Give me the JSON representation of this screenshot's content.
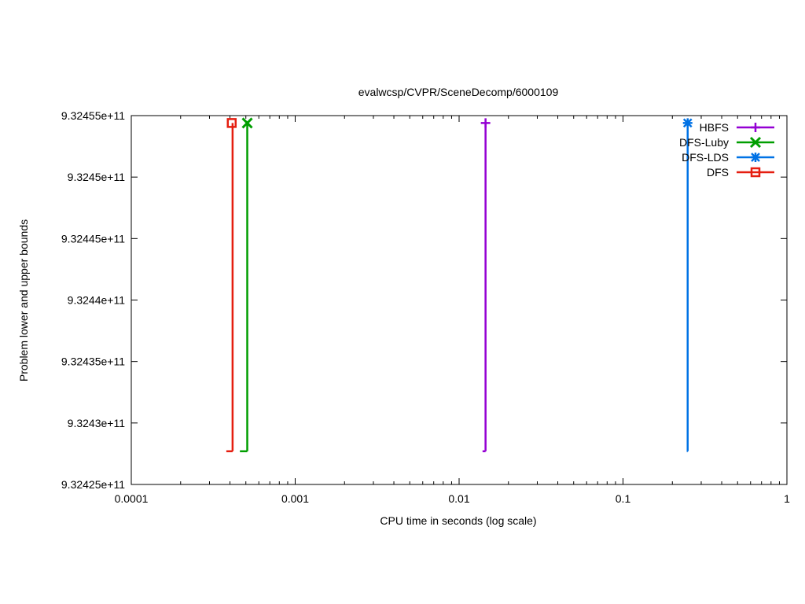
{
  "chart_data": {
    "type": "line",
    "title": "evalwcsp/CVPR/SceneDecomp/6000109",
    "xlabel": "CPU time in seconds (log scale)",
    "ylabel": "Problem lower and upper bounds",
    "x_scale": "log",
    "xlim": [
      0.0001,
      1
    ],
    "ylim": [
      932425000000,
      932455000000
    ],
    "x_ticks": [
      {
        "value": 0.0001,
        "label": "0.0001"
      },
      {
        "value": 0.001,
        "label": "0.001"
      },
      {
        "value": 0.01,
        "label": "0.01"
      },
      {
        "value": 0.1,
        "label": "0.1"
      },
      {
        "value": 1,
        "label": "1"
      }
    ],
    "y_ticks": [
      {
        "value": 932425000000,
        "label": "9.32425e+11"
      },
      {
        "value": 932430000000,
        "label": "9.3243e+11"
      },
      {
        "value": 932435000000,
        "label": "9.32435e+11"
      },
      {
        "value": 932440000000,
        "label": "9.3244e+11"
      },
      {
        "value": 932445000000,
        "label": "9.32445e+11"
      },
      {
        "value": 932450000000,
        "label": "9.3245e+11"
      },
      {
        "value": 932455000000,
        "label": "9.32455e+11"
      }
    ],
    "legend_position": "top-right",
    "grid": false,
    "series": [
      {
        "name": "HBFS",
        "color": "#9400d3",
        "marker": "plus",
        "lower_bound": {
          "x": [
            0.0139,
            0.0145
          ],
          "y": [
            932427700000,
            932427700000
          ]
        },
        "step": {
          "x": [
            0.0145,
            0.0145
          ],
          "y": [
            932427700000,
            932454400000
          ]
        },
        "upper_bound": {
          "x": [
            0.0145
          ],
          "y": [
            932454400000
          ]
        }
      },
      {
        "name": "DFS-Luby",
        "color": "#009e00",
        "marker": "x",
        "lower_bound": {
          "x": [
            0.00046,
            0.00051
          ],
          "y": [
            932427700000,
            932427700000
          ]
        },
        "step": {
          "x": [
            0.00051,
            0.00051
          ],
          "y": [
            932427700000,
            932454400000
          ]
        },
        "upper_bound": {
          "x": [
            0.00051
          ],
          "y": [
            932454400000
          ]
        }
      },
      {
        "name": "DFS-LDS",
        "color": "#0072e5",
        "marker": "star",
        "lower_bound": {
          "x": [
            0.245,
            0.248
          ],
          "y": [
            932427700000,
            932427700000
          ]
        },
        "step": {
          "x": [
            0.248,
            0.248
          ],
          "y": [
            932427700000,
            932454400000
          ]
        },
        "upper_bound": {
          "x": [
            0.248
          ],
          "y": [
            932454400000
          ]
        }
      },
      {
        "name": "DFS",
        "color": "#e51e10",
        "marker": "square",
        "lower_bound": {
          "x": [
            0.00038,
            0.000415
          ],
          "y": [
            932427700000,
            932427700000
          ]
        },
        "step": {
          "x": [
            0.000415,
            0.000415
          ],
          "y": [
            932427700000,
            932454400000
          ]
        },
        "upper_bound": {
          "x": [
            0.00041
          ],
          "y": [
            932454400000
          ]
        }
      }
    ]
  }
}
